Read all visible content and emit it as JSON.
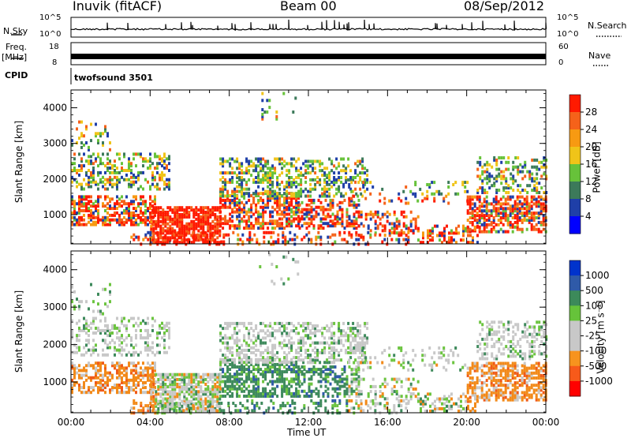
{
  "header": {
    "station": "Inuvik (fitACF)",
    "beam": "Beam 00",
    "date": "08/Sep/2012"
  },
  "noise_panel": {
    "left_label": "N.Sky",
    "right_label": "N.Search",
    "left_ticks": [
      "10^5",
      "10^0"
    ],
    "right_ticks": [
      "10^5",
      "10^0"
    ]
  },
  "freq_panel": {
    "left_label_top": "Freq.",
    "left_label_unit": "[MHz]",
    "right_label": "Nave",
    "left_ticks": [
      "18",
      "8"
    ],
    "right_ticks": [
      "60",
      "0"
    ]
  },
  "cpid_panel": {
    "label": "CPID",
    "program": "twofsound 3501"
  },
  "colors": {
    "power_scale": [
      "#0000ff",
      "#1f3fa8",
      "#3c7a5a",
      "#67c23a",
      "#f0c419",
      "#f79a12",
      "#f5621a",
      "#ff1a00"
    ],
    "velocity_scale": [
      "#ff0000",
      "#f75a1a",
      "#f7931e",
      "#c8c8c8",
      "#c8c8c8",
      "#66c33a",
      "#3c8a5a",
      "#2f5aa8",
      "#0033cc"
    ],
    "scatter_power": {
      "red": "#ff1a00",
      "orange": "#f5621a",
      "amber": "#f79a12",
      "yellow": "#f0c419",
      "green": "#67c23a",
      "teal": "#3c7a5a",
      "blue": "#1f3fa8"
    },
    "scatter_velocity": {
      "orange": "#f28a1a",
      "red_orange": "#f05a18",
      "grey": "#c8c8c8",
      "dark_green": "#3e8a5c",
      "light_green": "#6cc440",
      "blue": "#2f5aa8"
    }
  },
  "chart_data": [
    {
      "type": "heatmap",
      "name": "power",
      "xlabel": "",
      "ylabel": "Slant Range [km]",
      "ylim": [
        180,
        4500
      ],
      "y_ticks": [
        1000,
        2000,
        3000,
        4000
      ],
      "x_range_hours": [
        0,
        24
      ],
      "colorbar_label": "Power [dB]",
      "colorbar_ticks": [
        "28",
        "24",
        "20",
        "16",
        "12",
        "8",
        "4"
      ],
      "colorbar_range": [
        0,
        30
      ]
    },
    {
      "type": "heatmap",
      "name": "velocity",
      "xlabel": "Time UT",
      "ylabel": "Slant Range [km]",
      "ylim": [
        180,
        4500
      ],
      "y_ticks": [
        1000,
        2000,
        3000,
        4000
      ],
      "x_ticks": [
        "00:00",
        "04:00",
        "08:00",
        "12:00",
        "16:00",
        "20:00",
        "00:00"
      ],
      "colorbar_label": "Velocity [m s⁻¹]",
      "colorbar_ticks": [
        "1000",
        "500",
        "100",
        "25",
        "-25",
        "-100",
        "-500",
        "-1000"
      ]
    }
  ]
}
